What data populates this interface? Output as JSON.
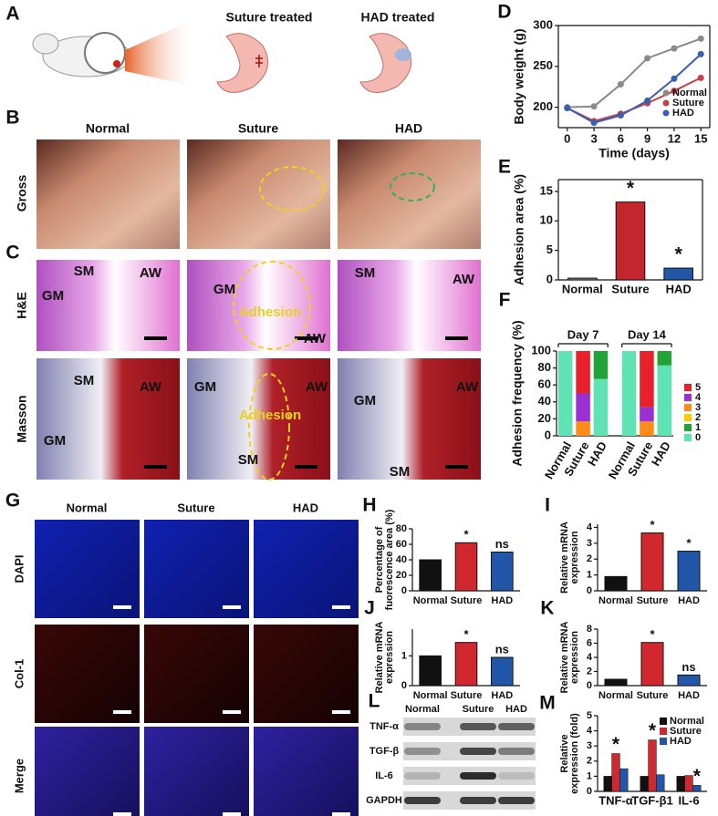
{
  "panel_a": {
    "label": "A",
    "captions": [
      "Suture treated",
      "HAD treated"
    ]
  },
  "panel_b": {
    "label": "B",
    "columns": [
      "Normal",
      "Suture",
      "HAD"
    ],
    "rows": [
      "Gross"
    ]
  },
  "panel_c": {
    "label": "C",
    "rows": [
      "H&E",
      "Masson"
    ],
    "image_labels": [
      [
        "GM",
        "SM",
        "AW"
      ],
      [
        "GM",
        "Adhesion",
        "AW"
      ],
      [
        "SM",
        "AW"
      ],
      [
        "SM",
        "AW",
        "GM"
      ],
      [
        "GM",
        "Adhesion",
        "AW",
        "SM"
      ],
      [
        "GM",
        "AW",
        "SM"
      ]
    ]
  },
  "panel_g": {
    "label": "G",
    "columns": [
      "Normal",
      "Suture",
      "HAD"
    ],
    "rows": [
      "DAPI",
      "Col-1",
      "Merge"
    ]
  },
  "panel_l": {
    "label": "L",
    "columns": [
      "Normal",
      "Suture",
      "HAD"
    ],
    "rows": [
      "TNF-α",
      "TGF-β",
      "IL-6",
      "GAPDH"
    ]
  },
  "chart_data": [
    {
      "label": "D",
      "type": "line",
      "x": [
        0,
        3,
        6,
        9,
        12,
        15
      ],
      "xlim": [
        -1,
        16
      ],
      "xticks": [
        0,
        3,
        6,
        9,
        12,
        15
      ],
      "ylim": [
        175,
        300
      ],
      "yticks": [
        200,
        250,
        300
      ],
      "xlabel": "Time (days)",
      "ylabel": "Body weight (g)",
      "legend": "lower right",
      "series": [
        {
          "name": "Normal",
          "color": "#8a8a8a",
          "values": [
            200,
            201,
            228,
            260,
            272,
            284
          ]
        },
        {
          "name": "Suture",
          "color": "#c8414a",
          "values": [
            199,
            183,
            192,
            205,
            220,
            236
          ]
        },
        {
          "name": "HAD",
          "color": "#3a5fb0",
          "values": [
            199,
            181,
            190,
            208,
            235,
            265
          ]
        }
      ]
    },
    {
      "label": "E",
      "type": "bar",
      "categories": [
        "Normal",
        "Suture",
        "HAD"
      ],
      "values": [
        0.3,
        13.2,
        2.0
      ],
      "colors": [
        "#8a8a8a",
        "#c4262e",
        "#2256a8"
      ],
      "annotations": [
        null,
        "*",
        "*"
      ],
      "ylim": [
        0,
        17
      ],
      "yticks": [
        0,
        5,
        10,
        15
      ],
      "ylabel": "Adhesion area (%)"
    },
    {
      "label": "F",
      "type": "stacked_bar",
      "categories": [
        "Normal",
        "Suture",
        "HAD",
        "Normal",
        "Suture",
        "HAD"
      ],
      "groups": [
        "Day 7",
        "Day 14"
      ],
      "ylim": [
        0,
        100
      ],
      "yticks": [
        0,
        20,
        40,
        60,
        80,
        100
      ],
      "ylabel": "Adhesion frequency (%)",
      "series": [
        {
          "name": "0",
          "color": "#5fe3b4",
          "values": [
            100,
            0,
            67,
            100,
            0,
            83
          ]
        },
        {
          "name": "1",
          "color": "#21a336",
          "values": [
            0,
            0,
            33,
            0,
            0,
            17
          ]
        },
        {
          "name": "2",
          "color": "#f5d000",
          "values": [
            0,
            0,
            0,
            0,
            0,
            0
          ]
        },
        {
          "name": "3",
          "color": "#ff8c1a",
          "values": [
            0,
            17,
            0,
            0,
            17,
            0
          ]
        },
        {
          "name": "4",
          "color": "#9b30d0",
          "values": [
            0,
            33,
            0,
            0,
            17,
            0
          ]
        },
        {
          "name": "5",
          "color": "#e8202a",
          "values": [
            0,
            50,
            0,
            0,
            66,
            0
          ]
        }
      ]
    },
    {
      "label": "H",
      "type": "bar",
      "categories": [
        "Normal",
        "Suture",
        "HAD"
      ],
      "values": [
        40,
        62,
        50
      ],
      "colors": [
        "#111111",
        "#d0282e",
        "#2256a8"
      ],
      "annotations": [
        null,
        "*",
        "ns"
      ],
      "ylim": [
        0,
        80
      ],
      "yticks": [
        0,
        20,
        40,
        60,
        80
      ],
      "ylabel": [
        "Percentage of",
        "fuorescence area (%)"
      ]
    },
    {
      "label": "I",
      "type": "bar",
      "categories": [
        "Normal",
        "Suture",
        "HAD"
      ],
      "values": [
        0.9,
        3.65,
        2.5
      ],
      "colors": [
        "#111111",
        "#d0282e",
        "#2256a8"
      ],
      "annotations": [
        null,
        "*",
        "*"
      ],
      "ylim": [
        0,
        4.2
      ],
      "yticks": [
        0,
        1,
        2,
        3,
        4
      ],
      "ylabel": [
        "Relative mRNA",
        "expression"
      ]
    },
    {
      "label": "J",
      "type": "bar",
      "categories": [
        "Normal",
        "Suture",
        "HAD"
      ],
      "values": [
        1.0,
        1.45,
        0.95
      ],
      "colors": [
        "#111111",
        "#d0282e",
        "#2256a8"
      ],
      "annotations": [
        null,
        "*",
        "ns"
      ],
      "ylim": [
        0,
        1.9
      ],
      "yticks": [
        0,
        1
      ],
      "ylabel": [
        "Relative mRNA",
        "expression"
      ]
    },
    {
      "label": "K",
      "type": "bar",
      "categories": [
        "Normal",
        "Suture",
        "HAD"
      ],
      "values": [
        0.9,
        6.1,
        1.5
      ],
      "colors": [
        "#111111",
        "#d0282e",
        "#2256a8"
      ],
      "annotations": [
        null,
        "*",
        "ns"
      ],
      "ylim": [
        0,
        8
      ],
      "yticks": [
        0,
        2,
        4,
        6,
        8
      ],
      "ylabel": [
        "Relative mRNA",
        "expression"
      ]
    },
    {
      "label": "M",
      "type": "grouped_bar",
      "categories": [
        "TNF-α",
        "TGF-β1",
        "IL-6"
      ],
      "ylim": [
        0,
        5
      ],
      "yticks": [
        0,
        1,
        2,
        3,
        4,
        5
      ],
      "ylabel": [
        "Relative",
        "expression (fold)"
      ],
      "legend": "upper right",
      "series": [
        {
          "name": "Normal",
          "color": "#111111",
          "values": [
            1.0,
            1.0,
            1.0
          ]
        },
        {
          "name": "Suture",
          "color": "#d0282e",
          "values": [
            2.5,
            3.4,
            1.05
          ],
          "annotations": [
            "*",
            "*",
            null
          ]
        },
        {
          "name": "HAD",
          "color": "#2256a8",
          "values": [
            1.5,
            1.1,
            0.4
          ],
          "annotations": [
            null,
            null,
            "*"
          ]
        }
      ]
    }
  ]
}
